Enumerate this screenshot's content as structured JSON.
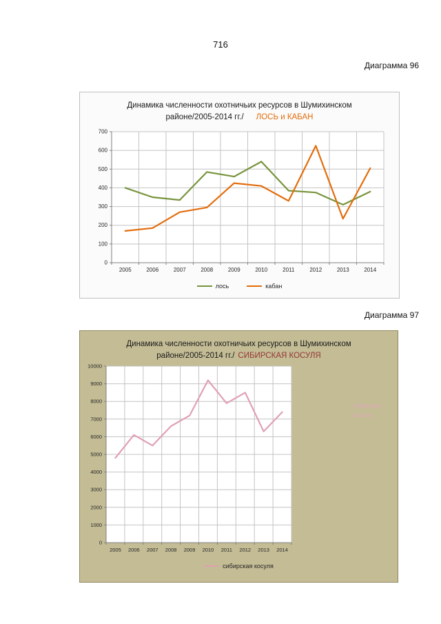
{
  "page_number": "716",
  "captions": [
    "Диаграмма 96",
    "Диаграмма 97"
  ],
  "colors": {
    "los_line": "#77933c",
    "kaban_line": "#e36c0a",
    "kosulya_line": "#e0a0b2",
    "highlight_1": "#e36c0a",
    "highlight_2": "#943634",
    "box2_background": "#c3bc95"
  },
  "chart_data": [
    {
      "type": "line",
      "title_line1": "Динамика численности охотничьих ресурсов в Шумихинском",
      "title_line2": "районе/2005-2014 гг./",
      "title_highlight": "ЛОСЬ и КАБАН",
      "categories": [
        "2005",
        "2006",
        "2007",
        "2008",
        "2009",
        "2010",
        "2011",
        "2012",
        "2013",
        "2014"
      ],
      "series": [
        {
          "name": "лось",
          "color": "#77933c",
          "values": [
            400,
            350,
            335,
            485,
            460,
            540,
            385,
            375,
            310,
            380
          ]
        },
        {
          "name": "кабан",
          "color": "#e36c0a",
          "values": [
            170,
            185,
            270,
            295,
            425,
            410,
            330,
            625,
            235,
            505
          ]
        }
      ],
      "ylim": [
        0,
        700
      ],
      "ytick": 100,
      "grid": true,
      "legend_position": "bottom"
    },
    {
      "type": "line",
      "title_line1": "Динамика численности  охотничьих ресурсов   в Шумихинском",
      "title_line2": "районе/2005-2014  гг./",
      "title_highlight": "СИБИРСКАЯ  КОСУЛЯ",
      "side_label": "сибирская косуля",
      "categories": [
        "2005",
        "2006",
        "2007",
        "2008",
        "2009",
        "2010",
        "2011",
        "2012",
        "2013",
        "2014"
      ],
      "series": [
        {
          "name": "сибирская косуля",
          "color": "#e0a0b2",
          "values": [
            4800,
            6100,
            5500,
            6600,
            7200,
            9200,
            7900,
            8500,
            6300,
            7400
          ]
        }
      ],
      "ylim": [
        0,
        10000
      ],
      "ytick": 1000,
      "grid": true,
      "legend_position": "bottom"
    }
  ]
}
